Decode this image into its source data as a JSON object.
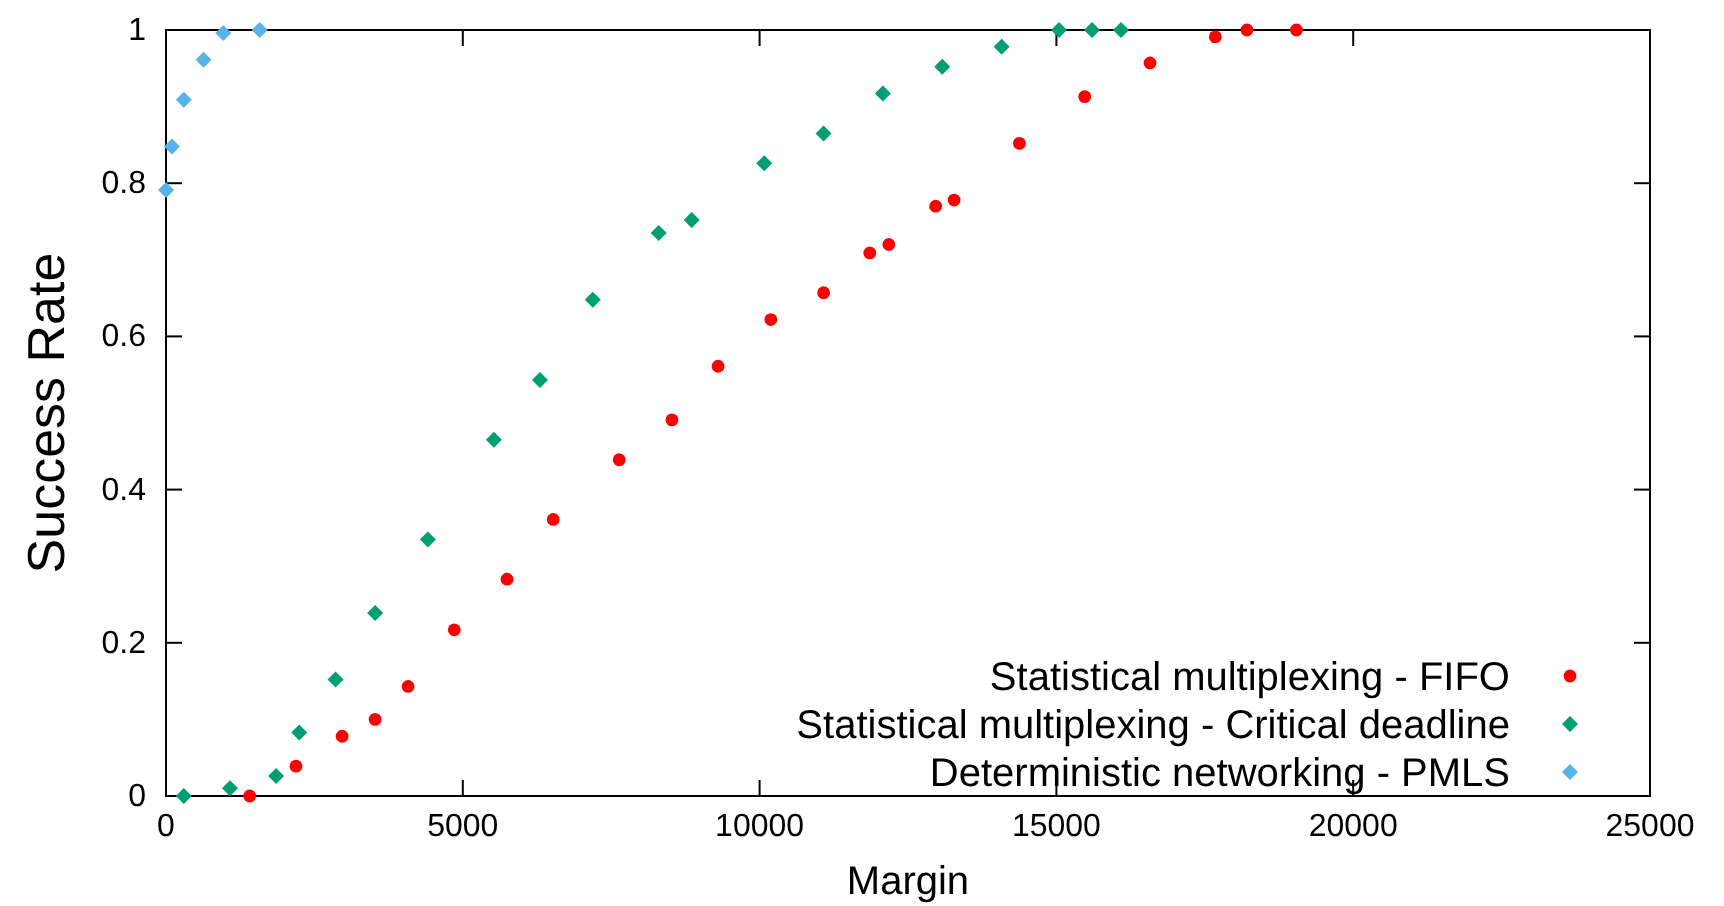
{
  "chart_data": {
    "type": "scatter",
    "xlabel": "Margin",
    "ylabel": "Success Rate",
    "xlim": [
      0,
      25000
    ],
    "ylim": [
      0,
      1
    ],
    "xticks": [
      0,
      5000,
      10000,
      15000,
      20000,
      25000
    ],
    "yticks": [
      0,
      0.2,
      0.4,
      0.6,
      0.8,
      1
    ],
    "grid": false,
    "legend": "bottom right",
    "series": [
      {
        "name": "Statistical multiplexing - FIFO",
        "color": "#ff0000",
        "marker": "circle",
        "x": [
          1410,
          2189,
          2967,
          3523,
          4078,
          4856,
          5745,
          6523,
          7634,
          8523,
          9300,
          10189,
          11078,
          11856,
          12177,
          12966,
          13277,
          14377,
          15477,
          16577,
          17677,
          18210,
          19043
        ],
        "values": [
          0,
          0.039,
          0.078,
          0.1,
          0.143,
          0.217,
          0.283,
          0.361,
          0.439,
          0.491,
          0.561,
          0.622,
          0.657,
          0.709,
          0.72,
          0.77,
          0.778,
          0.852,
          0.913,
          0.957,
          0.991,
          1,
          1
        ]
      },
      {
        "name": "Statistical multiplexing - Critical deadline",
        "color": "#009e73",
        "marker": "diamond",
        "x": [
          300,
          1078,
          1855,
          2245,
          2856,
          3523,
          4412,
          5523,
          6300,
          7190,
          8300,
          8856,
          10078,
          11078,
          12077,
          13077,
          14077,
          15044,
          15600,
          16088
        ],
        "values": [
          0,
          0.01,
          0.026,
          0.083,
          0.152,
          0.239,
          0.335,
          0.465,
          0.543,
          0.648,
          0.735,
          0.752,
          0.826,
          0.865,
          0.917,
          0.952,
          0.978,
          1,
          1,
          1
        ]
      },
      {
        "name": "Deterministic networking - PMLS",
        "color": "#56b4e9",
        "marker": "diamond",
        "x": [
          0,
          100,
          300,
          633,
          967,
          1578
        ],
        "values": [
          0.791,
          0.848,
          0.909,
          0.961,
          0.996,
          1
        ]
      }
    ]
  }
}
